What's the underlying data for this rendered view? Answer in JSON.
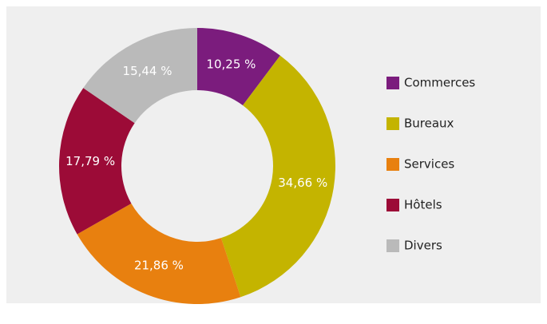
{
  "chart_data": {
    "type": "donut",
    "categories": [
      "Commerces",
      "Bureaux",
      "Services",
      "Hôtels",
      "Divers"
    ],
    "values": [
      10.25,
      34.66,
      21.86,
      17.79,
      15.44
    ],
    "value_labels": [
      "10,25 %",
      "34,66 %",
      "21,86 %",
      "17,79 %",
      "15,44 %"
    ],
    "colors": [
      "#7b1c7d",
      "#c4b400",
      "#e8800f",
      "#9c0b37",
      "#bababa"
    ],
    "legend": "right"
  }
}
